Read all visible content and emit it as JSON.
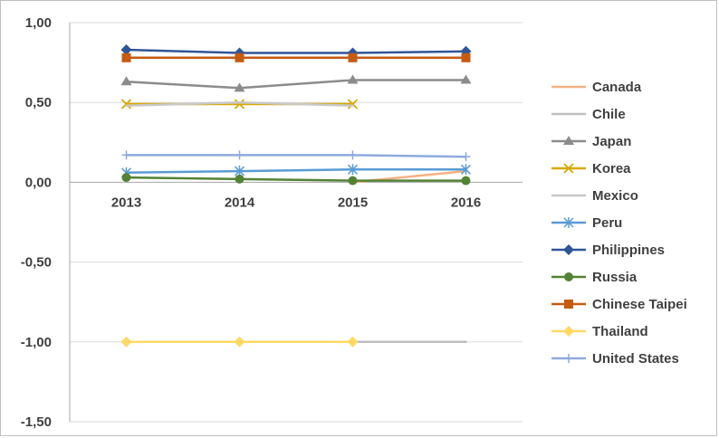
{
  "chart_data": {
    "type": "line",
    "title": "",
    "xlabel": "",
    "ylabel": "",
    "categories": [
      "2013",
      "2014",
      "2015",
      "2016"
    ],
    "ylim": [
      -1.5,
      1.0
    ],
    "y_ticks": [
      "1,00",
      "0,50",
      "0,00",
      "-0,50",
      "-1,00",
      "-1,50"
    ],
    "y_tick_values": [
      1.0,
      0.5,
      0.0,
      -0.5,
      -1.0,
      -1.5
    ],
    "grid": true,
    "legend_position": "right",
    "series": [
      {
        "name": "Canada",
        "color": "#F4B183",
        "marker": "none",
        "values": [
          null,
          null,
          0.0,
          0.07
        ]
      },
      {
        "name": "Chile",
        "color": "#BFBFBF",
        "marker": "none",
        "values": [
          null,
          null,
          -1.0,
          -1.0
        ]
      },
      {
        "name": "Japan",
        "color": "#8C8C8C",
        "marker": "triangle",
        "values": [
          0.63,
          0.59,
          0.64,
          0.64
        ]
      },
      {
        "name": "Korea",
        "color": "#D9A800",
        "marker": "x",
        "values": [
          0.49,
          0.49,
          0.49,
          null
        ]
      },
      {
        "name": "Mexico",
        "color": "#C8C8C8",
        "marker": "none",
        "values": [
          0.48,
          0.5,
          0.48,
          null
        ]
      },
      {
        "name": "Peru",
        "color": "#5B9BD5",
        "marker": "asterisk",
        "values": [
          0.06,
          0.07,
          0.08,
          0.08
        ]
      },
      {
        "name": "Philippines",
        "color": "#2F5597",
        "marker": "diamond",
        "values": [
          0.83,
          0.81,
          0.81,
          0.82
        ]
      },
      {
        "name": "Russia",
        "color": "#548235",
        "marker": "circle",
        "values": [
          0.03,
          0.02,
          0.01,
          0.01
        ]
      },
      {
        "name": "Chinese Taipei",
        "color": "#C55A11",
        "marker": "square",
        "values": [
          0.78,
          0.78,
          0.78,
          0.78
        ]
      },
      {
        "name": "Thailand",
        "color": "#FFD966",
        "marker": "diamond",
        "values": [
          -1.0,
          -1.0,
          -1.0,
          null
        ]
      },
      {
        "name": "United States",
        "color": "#8FAADC",
        "marker": "plus",
        "values": [
          0.17,
          0.17,
          0.17,
          0.16
        ]
      }
    ]
  }
}
